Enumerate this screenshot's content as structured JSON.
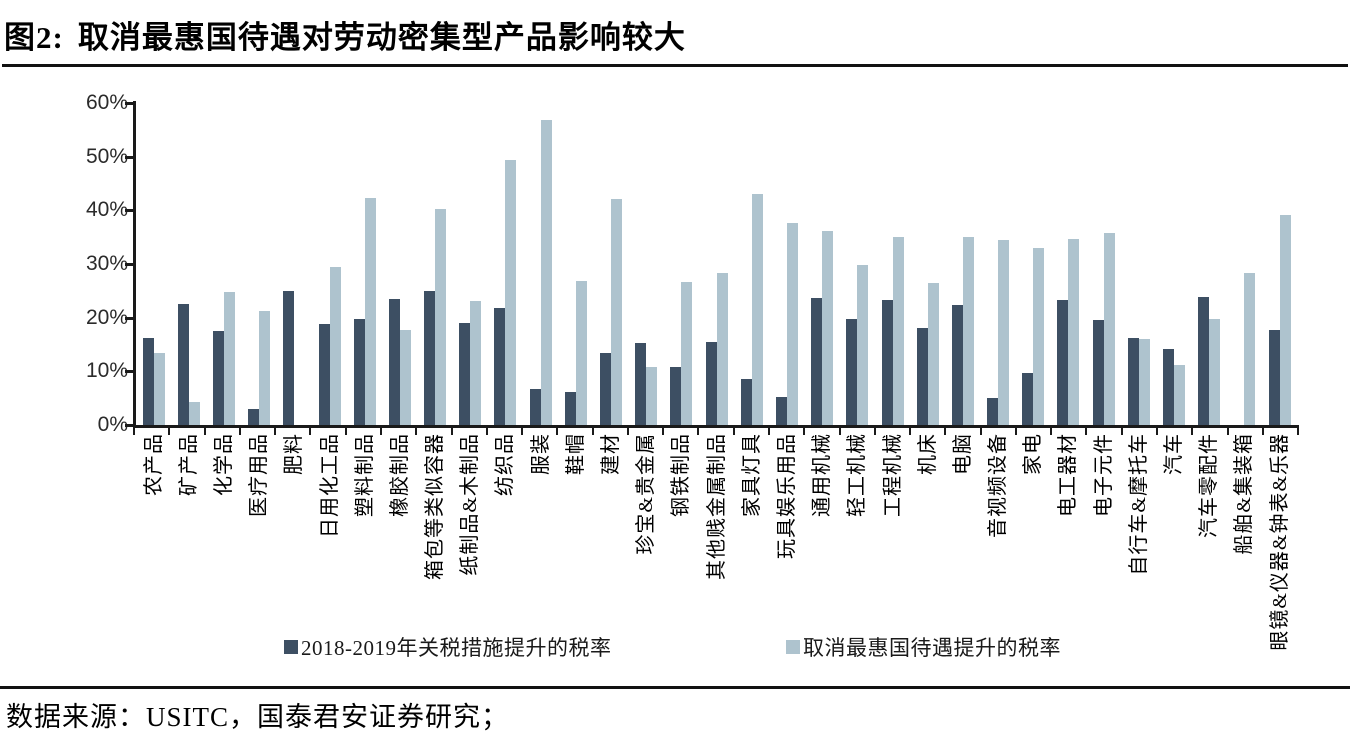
{
  "figure": {
    "label": "图2:",
    "title": "取消最惠国待遇对劳动密集型产品影响较大",
    "source": "数据来源：USITC，国泰君安证券研究；"
  },
  "chart_data": {
    "type": "bar",
    "title": "取消最惠国待遇对劳动密集型产品影响较大",
    "xlabel": "",
    "ylabel": "",
    "ylim": [
      0,
      60
    ],
    "y_tick_labels_top_to_bottom": [
      "60%",
      "50%",
      "40%",
      "30%",
      "20%",
      "10%",
      "0%"
    ],
    "grid": false,
    "legend_position": "bottom",
    "categories": [
      "农产品",
      "矿产品",
      "化学品",
      "医疗用品",
      "肥料",
      "日用化工品",
      "塑料制品",
      "橡胶制品",
      "箱包等类似容器",
      "纸制品&木制品",
      "纺织品",
      "服装",
      "鞋帽",
      "建材",
      "珍宝&贵金属",
      "钢铁制品",
      "其他贱金属制品",
      "家具灯具",
      "玩具娱乐用品",
      "通用机械",
      "轻工机械",
      "工程机械",
      "机床",
      "电脑",
      "音视频设备",
      "家电",
      "电工器材",
      "电子元件",
      "自行车&摩托车",
      "汽车",
      "汽车零配件",
      "船舶&集装箱",
      "眼镜&仪器&钟表&乐器"
    ],
    "series": [
      {
        "name": "2018-2019年关税措施提升的税率",
        "color": "#3d4f63",
        "values": [
          16.3,
          22.5,
          17.6,
          3.0,
          25.0,
          18.8,
          19.7,
          23.4,
          24.9,
          19.0,
          21.8,
          6.7,
          6.2,
          13.5,
          15.3,
          10.8,
          15.5,
          8.6,
          5.3,
          23.6,
          19.7,
          23.3,
          18.1,
          22.4,
          5.0,
          9.7,
          23.3,
          19.6,
          16.2,
          14.2,
          23.9,
          0,
          17.7
        ]
      },
      {
        "name": "取消最惠国待遇提升的税率",
        "color": "#aec3ce",
        "values": [
          13.4,
          4.3,
          24.7,
          21.2,
          0,
          29.4,
          42.3,
          17.8,
          40.2,
          23.1,
          49.4,
          56.8,
          26.9,
          42.2,
          10.9,
          26.7,
          28.4,
          43.1,
          37.7,
          36.1,
          29.9,
          35.1,
          26.4,
          35.1,
          34.4,
          32.9,
          34.7,
          35.7,
          16.1,
          11.1,
          19.7,
          28.4,
          39.2
        ]
      }
    ]
  }
}
